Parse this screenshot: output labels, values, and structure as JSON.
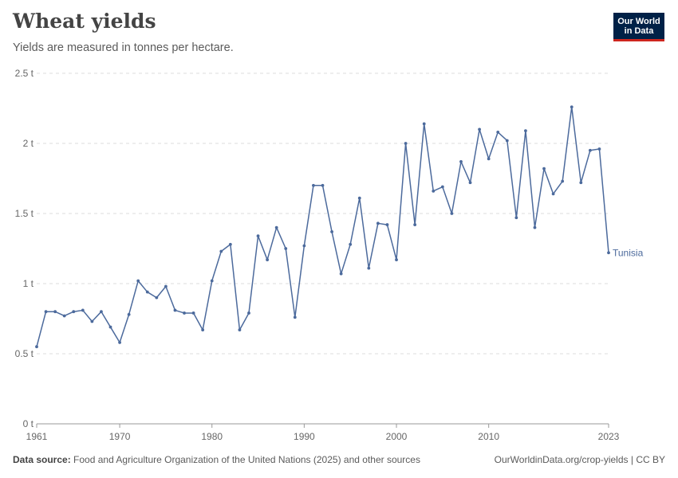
{
  "header": {
    "title": "Wheat yields",
    "subtitle": "Yields are measured in tonnes per hectare."
  },
  "logo": {
    "line1": "Our World",
    "line2": "in Data"
  },
  "footer": {
    "source_label": "Data source:",
    "source_text": "Food and Agriculture Organization of the United Nations (2025) and other sources",
    "link_text": "OurWorldinData.org/crop-yields",
    "license_sep": " | ",
    "license": "CC BY"
  },
  "colors": {
    "series": "#4c6a9c",
    "grid": "#dddddd",
    "brand": "#002147",
    "brand_accent": "#ce261e"
  },
  "chart_data": {
    "type": "line",
    "title": "Wheat yields",
    "subtitle": "Yields are measured in tonnes per hectare.",
    "xlabel": "",
    "ylabel": "",
    "unit": "t",
    "xlim": [
      1961,
      2023
    ],
    "ylim": [
      0,
      2.5
    ],
    "y_ticks": [
      0,
      0.5,
      1,
      1.5,
      2,
      2.5
    ],
    "y_tick_labels": [
      "0 t",
      "0.5 t",
      "1 t",
      "1.5 t",
      "2 t",
      "2.5 t"
    ],
    "x_ticks": [
      1961,
      1970,
      1980,
      1990,
      2000,
      2010,
      2023
    ],
    "x_tick_labels": [
      "1961",
      "1970",
      "1980",
      "1990",
      "2000",
      "2010",
      "2023"
    ],
    "grid": true,
    "series": [
      {
        "name": "Tunisia",
        "x": [
          1961,
          1962,
          1963,
          1964,
          1965,
          1966,
          1967,
          1968,
          1969,
          1970,
          1971,
          1972,
          1973,
          1974,
          1975,
          1976,
          1977,
          1978,
          1979,
          1980,
          1981,
          1982,
          1983,
          1984,
          1985,
          1986,
          1987,
          1988,
          1989,
          1990,
          1991,
          1992,
          1993,
          1994,
          1995,
          1996,
          1997,
          1998,
          1999,
          2000,
          2001,
          2002,
          2003,
          2004,
          2005,
          2006,
          2007,
          2008,
          2009,
          2010,
          2011,
          2012,
          2013,
          2014,
          2015,
          2016,
          2017,
          2018,
          2019,
          2020,
          2021,
          2022,
          2023
        ],
        "values": [
          0.55,
          0.8,
          0.8,
          0.77,
          0.8,
          0.81,
          0.73,
          0.8,
          0.69,
          0.58,
          0.78,
          1.02,
          0.94,
          0.9,
          0.98,
          0.81,
          0.79,
          0.79,
          0.67,
          1.02,
          1.23,
          1.28,
          0.67,
          0.79,
          1.34,
          1.17,
          1.4,
          1.25,
          0.76,
          1.27,
          1.7,
          1.7,
          1.37,
          1.07,
          1.28,
          1.61,
          1.11,
          1.43,
          1.42,
          1.17,
          2.0,
          1.42,
          2.14,
          1.66,
          1.69,
          1.5,
          1.87,
          1.72,
          2.1,
          1.89,
          2.08,
          2.02,
          1.47,
          2.09,
          1.4,
          1.82,
          1.64,
          1.73,
          2.26,
          1.72,
          1.95,
          1.96,
          1.22
        ]
      }
    ]
  }
}
